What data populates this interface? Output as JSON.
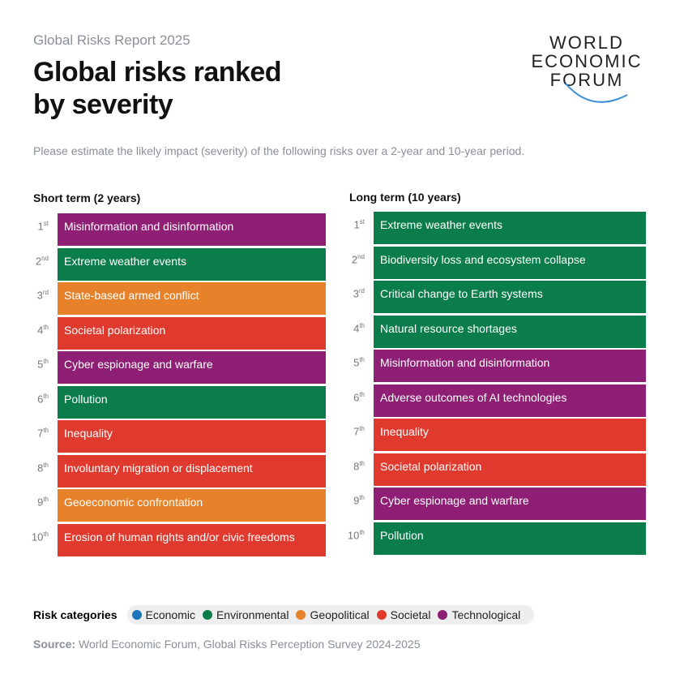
{
  "header": {
    "kicker": "Global Risks Report 2025",
    "title_lines": [
      "Global risks ranked",
      "by severity"
    ],
    "logo_lines": [
      "WORLD",
      "ECONOMIC",
      "FORUM"
    ]
  },
  "subtitle": "Please estimate the likely impact (severity) of the following risks over a 2-year and 10-year period.",
  "columns": [
    {
      "heading": "Short term (2 years)",
      "items": [
        {
          "rank": "1",
          "suffix": "st",
          "label": "Misinformation and disinformation",
          "category": "Technological"
        },
        {
          "rank": "2",
          "suffix": "nd",
          "label": "Extreme weather events",
          "category": "Environmental"
        },
        {
          "rank": "3",
          "suffix": "rd",
          "label": "State-based armed conflict",
          "category": "Geopolitical"
        },
        {
          "rank": "4",
          "suffix": "th",
          "label": "Societal polarization",
          "category": "Societal"
        },
        {
          "rank": "5",
          "suffix": "th",
          "label": "Cyber espionage and warfare",
          "category": "Technological"
        },
        {
          "rank": "6",
          "suffix": "th",
          "label": "Pollution",
          "category": "Environmental"
        },
        {
          "rank": "7",
          "suffix": "th",
          "label": "Inequality",
          "category": "Societal"
        },
        {
          "rank": "8",
          "suffix": "th",
          "label": "Involuntary migration or displacement",
          "category": "Societal"
        },
        {
          "rank": "9",
          "suffix": "th",
          "label": "Geoeconomic confrontation",
          "category": "Geopolitical"
        },
        {
          "rank": "10",
          "suffix": "th",
          "label": "Erosion of human rights and/or civic freedoms",
          "category": "Societal"
        }
      ]
    },
    {
      "heading": "Long term (10 years)",
      "items": [
        {
          "rank": "1",
          "suffix": "st",
          "label": "Extreme weather events",
          "category": "Environmental"
        },
        {
          "rank": "2",
          "suffix": "nd",
          "label": "Biodiversity loss and ecosystem collapse",
          "category": "Environmental"
        },
        {
          "rank": "3",
          "suffix": "rd",
          "label": "Critical change to Earth systems",
          "category": "Environmental"
        },
        {
          "rank": "4",
          "suffix": "th",
          "label": "Natural resource shortages",
          "category": "Environmental"
        },
        {
          "rank": "5",
          "suffix": "th",
          "label": "Misinformation and disinformation",
          "category": "Technological"
        },
        {
          "rank": "6",
          "suffix": "th",
          "label": "Adverse outcomes of AI technologies",
          "category": "Technological"
        },
        {
          "rank": "7",
          "suffix": "th",
          "label": "Inequality",
          "category": "Societal"
        },
        {
          "rank": "8",
          "suffix": "th",
          "label": "Societal polarization",
          "category": "Societal"
        },
        {
          "rank": "9",
          "suffix": "th",
          "label": "Cyber espionage and warfare",
          "category": "Technological"
        },
        {
          "rank": "10",
          "suffix": "th",
          "label": "Pollution",
          "category": "Environmental"
        }
      ]
    }
  ],
  "legend": {
    "title": "Risk categories",
    "categories": [
      {
        "name": "Economic",
        "color": "#1c75bc"
      },
      {
        "name": "Environmental",
        "color": "#0a7d4a"
      },
      {
        "name": "Geopolitical",
        "color": "#e8822a"
      },
      {
        "name": "Societal",
        "color": "#e03a2e"
      },
      {
        "name": "Technological",
        "color": "#8e1f74"
      }
    ]
  },
  "source": {
    "label": "Source:",
    "text": "World Economic Forum, Global Risks Perception Survey 2024-2025"
  }
}
